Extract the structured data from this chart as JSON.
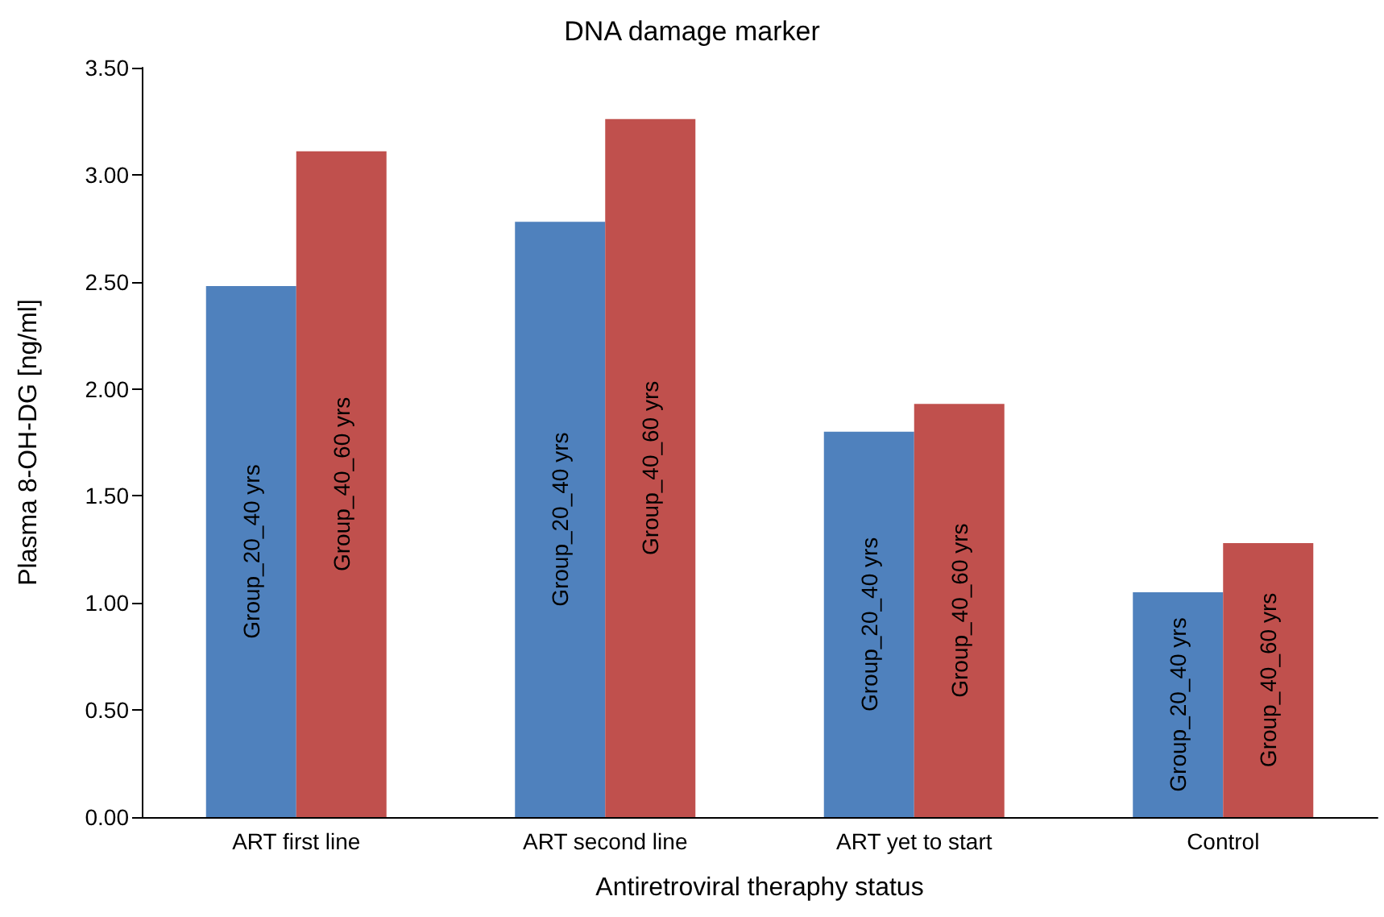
{
  "chart_data": {
    "type": "bar",
    "title": "DNA damage marker",
    "xlabel": "Antiretroviral theraphy status",
    "ylabel": "Plasma 8-OH-DG [ng/ml]",
    "categories": [
      "ART first line",
      "ART second line",
      "ART yet to start",
      "Control"
    ],
    "series": [
      {
        "name": "Group_20_40 yrs",
        "color": "#4f81bd",
        "values": [
          2.48,
          2.78,
          1.8,
          1.05
        ]
      },
      {
        "name": "Group_40_60 yrs",
        "color": "#c0504d",
        "values": [
          3.11,
          3.26,
          1.93,
          1.28
        ]
      }
    ],
    "ylim": [
      0,
      3.5
    ],
    "yticks": [
      {
        "value": 0,
        "label": "0.00"
      },
      {
        "value": 0.5,
        "label": "0.50"
      },
      {
        "value": 1,
        "label": "1.00"
      },
      {
        "value": 1.5,
        "label": "1.50"
      },
      {
        "value": 2,
        "label": "2.00"
      },
      {
        "value": 2.5,
        "label": "2.50"
      },
      {
        "value": 3,
        "label": "3.00"
      },
      {
        "value": 3.5,
        "label": "3.50"
      }
    ],
    "grid": false,
    "legend": false
  }
}
